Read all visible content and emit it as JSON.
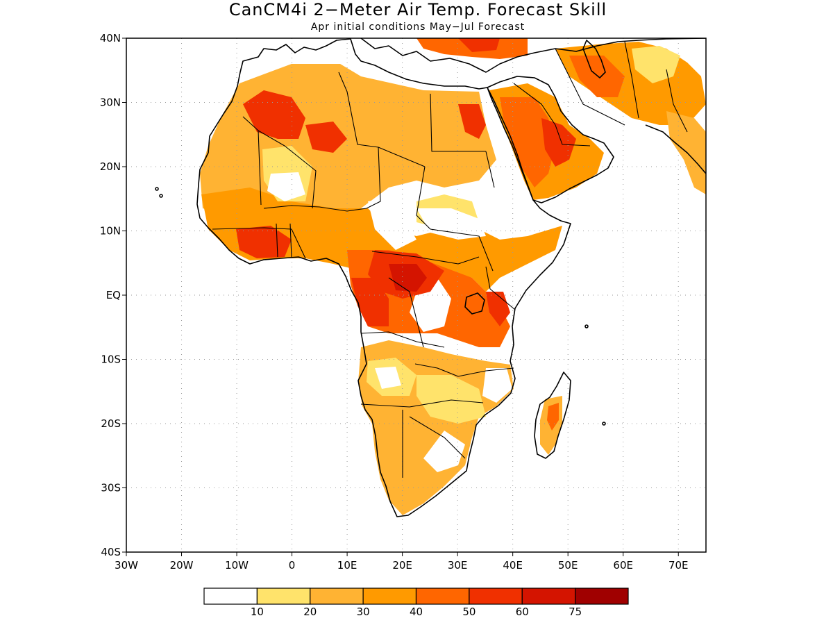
{
  "title": "CanCM4i 2−Meter Air Temp. Forecast Skill",
  "subtitle": "Apr initial conditions   May−Jul Forecast",
  "map": {
    "lon_range": [
      -30,
      75
    ],
    "lat_range": [
      -40,
      40
    ],
    "lon_ticks": [
      {
        "value": -30,
        "label": "30W"
      },
      {
        "value": -20,
        "label": "20W"
      },
      {
        "value": -10,
        "label": "10W"
      },
      {
        "value": 0,
        "label": "0"
      },
      {
        "value": 10,
        "label": "10E"
      },
      {
        "value": 20,
        "label": "20E"
      },
      {
        "value": 30,
        "label": "30E"
      },
      {
        "value": 40,
        "label": "40E"
      },
      {
        "value": 50,
        "label": "50E"
      },
      {
        "value": 60,
        "label": "60E"
      },
      {
        "value": 70,
        "label": "70E"
      }
    ],
    "lat_ticks": [
      {
        "value": 40,
        "label": "40N"
      },
      {
        "value": 30,
        "label": "30N"
      },
      {
        "value": 20,
        "label": "20N"
      },
      {
        "value": 10,
        "label": "10N"
      },
      {
        "value": 0,
        "label": "EQ"
      },
      {
        "value": -10,
        "label": "10S"
      },
      {
        "value": -20,
        "label": "20S"
      },
      {
        "value": -30,
        "label": "30S"
      },
      {
        "value": -40,
        "label": "40S"
      }
    ],
    "gridlines": true
  },
  "colorbar": {
    "colors": [
      "#ffffff",
      "#ffe36b",
      "#ffb333",
      "#ff9a00",
      "#ff6600",
      "#f03000",
      "#d41400",
      "#a00000"
    ],
    "labels": [
      "10",
      "20",
      "30",
      "40",
      "50",
      "60",
      "75"
    ]
  }
}
